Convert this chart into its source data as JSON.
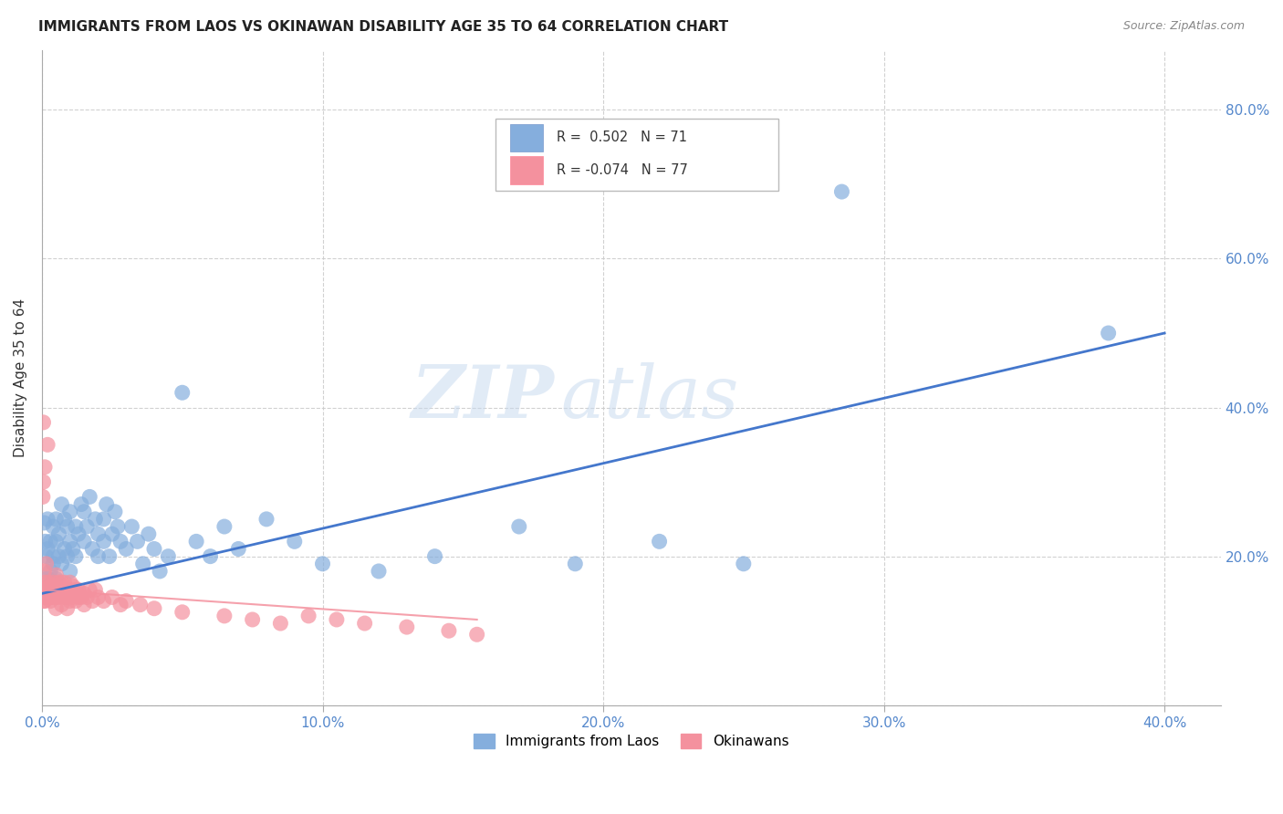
{
  "title": "IMMIGRANTS FROM LAOS VS OKINAWAN DISABILITY AGE 35 TO 64 CORRELATION CHART",
  "source": "Source: ZipAtlas.com",
  "ylabel": "Disability Age 35 to 64",
  "xlim": [
    0.0,
    0.42
  ],
  "ylim": [
    0.0,
    0.88
  ],
  "xticks": [
    0.0,
    0.1,
    0.2,
    0.3,
    0.4
  ],
  "xticklabels": [
    "0.0%",
    "10.0%",
    "20.0%",
    "30.0%",
    "40.0%"
  ],
  "yticks": [
    0.0,
    0.2,
    0.4,
    0.6,
    0.8
  ],
  "yticklabels": [
    "",
    "20.0%",
    "40.0%",
    "60.0%",
    "80.0%"
  ],
  "blue_color": "#85AEDD",
  "pink_color": "#F4919E",
  "blue_line_color": "#4477CC",
  "pink_line_color": "#F4919E",
  "grid_color": "#CCCCCC",
  "background_color": "#FFFFFF",
  "R_blue": 0.502,
  "N_blue": 71,
  "R_pink": -0.074,
  "N_pink": 77,
  "legend_label_blue": "Immigrants from Laos",
  "legend_label_pink": "Okinawans",
  "watermark_zip": "ZIP",
  "watermark_atlas": "atlas",
  "blue_line_x0": 0.0,
  "blue_line_y0": 0.15,
  "blue_line_x1": 0.4,
  "blue_line_y1": 0.5,
  "pink_line_x0": 0.0,
  "pink_line_y0": 0.155,
  "pink_line_x1": 0.155,
  "pink_line_y1": 0.115,
  "blue_scatter_x": [
    0.0008,
    0.0012,
    0.0015,
    0.002,
    0.002,
    0.002,
    0.003,
    0.003,
    0.003,
    0.004,
    0.004,
    0.004,
    0.005,
    0.005,
    0.005,
    0.006,
    0.006,
    0.007,
    0.007,
    0.008,
    0.008,
    0.009,
    0.009,
    0.01,
    0.01,
    0.01,
    0.011,
    0.012,
    0.012,
    0.013,
    0.014,
    0.015,
    0.015,
    0.016,
    0.017,
    0.018,
    0.019,
    0.02,
    0.02,
    0.022,
    0.022,
    0.023,
    0.024,
    0.025,
    0.026,
    0.027,
    0.028,
    0.03,
    0.032,
    0.034,
    0.036,
    0.038,
    0.04,
    0.042,
    0.045,
    0.05,
    0.055,
    0.06,
    0.065,
    0.07,
    0.08,
    0.09,
    0.1,
    0.12,
    0.14,
    0.17,
    0.19,
    0.22,
    0.25,
    0.285,
    0.38
  ],
  "blue_scatter_y": [
    0.245,
    0.22,
    0.2,
    0.17,
    0.21,
    0.25,
    0.18,
    0.22,
    0.16,
    0.2,
    0.24,
    0.19,
    0.17,
    0.22,
    0.25,
    0.2,
    0.23,
    0.19,
    0.27,
    0.21,
    0.25,
    0.2,
    0.24,
    0.22,
    0.18,
    0.26,
    0.21,
    0.24,
    0.2,
    0.23,
    0.27,
    0.22,
    0.26,
    0.24,
    0.28,
    0.21,
    0.25,
    0.2,
    0.23,
    0.22,
    0.25,
    0.27,
    0.2,
    0.23,
    0.26,
    0.24,
    0.22,
    0.21,
    0.24,
    0.22,
    0.19,
    0.23,
    0.21,
    0.18,
    0.2,
    0.42,
    0.22,
    0.2,
    0.24,
    0.21,
    0.25,
    0.22,
    0.19,
    0.18,
    0.2,
    0.24,
    0.19,
    0.22,
    0.19,
    0.69,
    0.5
  ],
  "pink_scatter_x": [
    0.0002,
    0.0003,
    0.0004,
    0.0005,
    0.0006,
    0.0007,
    0.0008,
    0.001,
    0.001,
    0.001,
    0.0015,
    0.002,
    0.002,
    0.002,
    0.002,
    0.003,
    0.003,
    0.003,
    0.003,
    0.004,
    0.004,
    0.004,
    0.005,
    0.005,
    0.005,
    0.005,
    0.005,
    0.006,
    0.006,
    0.006,
    0.007,
    0.007,
    0.007,
    0.007,
    0.008,
    0.008,
    0.008,
    0.009,
    0.009,
    0.009,
    0.01,
    0.01,
    0.01,
    0.011,
    0.011,
    0.012,
    0.012,
    0.013,
    0.013,
    0.014,
    0.015,
    0.015,
    0.016,
    0.017,
    0.018,
    0.019,
    0.02,
    0.022,
    0.025,
    0.028,
    0.03,
    0.035,
    0.04,
    0.05,
    0.065,
    0.075,
    0.085,
    0.095,
    0.105,
    0.115,
    0.13,
    0.145,
    0.155,
    0.001,
    0.0005,
    0.0003,
    0.002
  ],
  "pink_scatter_y": [
    0.155,
    0.16,
    0.145,
    0.38,
    0.155,
    0.14,
    0.18,
    0.155,
    0.165,
    0.14,
    0.19,
    0.155,
    0.145,
    0.155,
    0.165,
    0.14,
    0.16,
    0.155,
    0.145,
    0.155,
    0.145,
    0.165,
    0.13,
    0.145,
    0.155,
    0.16,
    0.175,
    0.145,
    0.155,
    0.165,
    0.135,
    0.15,
    0.155,
    0.165,
    0.145,
    0.155,
    0.165,
    0.13,
    0.145,
    0.155,
    0.14,
    0.155,
    0.165,
    0.145,
    0.16,
    0.14,
    0.155,
    0.145,
    0.155,
    0.145,
    0.135,
    0.15,
    0.145,
    0.155,
    0.14,
    0.155,
    0.145,
    0.14,
    0.145,
    0.135,
    0.14,
    0.135,
    0.13,
    0.125,
    0.12,
    0.115,
    0.11,
    0.12,
    0.115,
    0.11,
    0.105,
    0.1,
    0.095,
    0.32,
    0.3,
    0.28,
    0.35
  ]
}
